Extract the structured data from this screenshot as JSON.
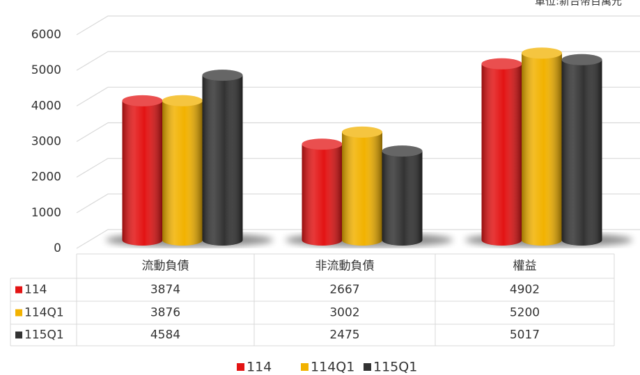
{
  "chart_data": {
    "type": "bar3d",
    "unit_note": "單位:新台幣百萬元",
    "categories": [
      "流動負債",
      "非流動負債",
      "權益"
    ],
    "series": [
      {
        "name": "114",
        "color": "#e31414",
        "values": [
          3874,
          2667,
          4902
        ]
      },
      {
        "name": "114Q1",
        "color": "#f2b200",
        "values": [
          3876,
          3002,
          5200
        ]
      },
      {
        "name": "115Q1",
        "color": "#333333",
        "values": [
          4584,
          2475,
          5017
        ]
      }
    ],
    "ylim": [
      0,
      6000
    ],
    "yticks": [
      0,
      1000,
      2000,
      3000,
      4000,
      5000,
      6000
    ],
    "grid": true,
    "legend": "bottom"
  }
}
